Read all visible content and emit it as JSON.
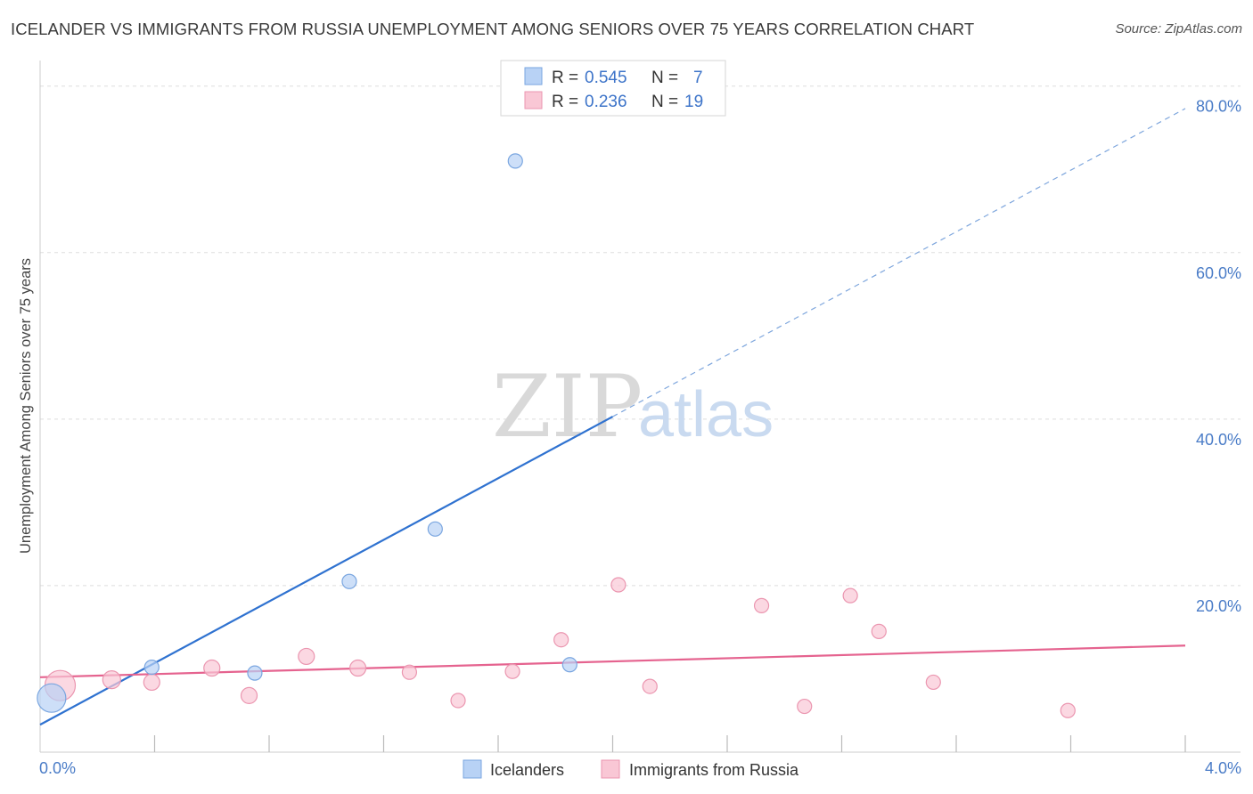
{
  "header": {
    "title": "ICELANDER VS IMMIGRANTS FROM RUSSIA UNEMPLOYMENT AMONG SENIORS OVER 75 YEARS CORRELATION CHART",
    "source": "Source: ZipAtlas.com"
  },
  "watermark": {
    "zip": "ZIP",
    "atlas": "atlas"
  },
  "colors": {
    "blue_fill": "#b8d2f5",
    "blue_stroke": "#7aa6e0",
    "blue_line": "#2f72d0",
    "pink_fill": "#f9c7d5",
    "pink_stroke": "#eb96b0",
    "pink_line": "#e5638f",
    "grid": "#dddddd",
    "tick_label": "#4a7cc7"
  },
  "legend": {
    "rows": [
      {
        "r_label": "R =",
        "r_value": "0.545",
        "n_label": "N =",
        "n_value": "7"
      },
      {
        "r_label": "R =",
        "r_value": "0.236",
        "n_label": "N =",
        "n_value": "19"
      }
    ]
  },
  "chart_data": {
    "type": "scatter",
    "title": "ICELANDER VS IMMIGRANTS FROM RUSSIA UNEMPLOYMENT AMONG SENIORS OVER 75 YEARS CORRELATION CHART",
    "xlabel": "",
    "ylabel": "Unemployment Among Seniors over 75 years",
    "xlim": [
      0,
      4.0
    ],
    "ylim": [
      0,
      82
    ],
    "x_tick_labels": [
      "0.0%",
      "4.0%"
    ],
    "y_ticks": [
      20,
      40,
      60,
      80
    ],
    "y_tick_labels": [
      "20.0%",
      "40.0%",
      "60.0%",
      "80.0%"
    ],
    "legend_placement": "top-center",
    "series": [
      {
        "name": "Icelanders",
        "color": "#b8d2f5",
        "r": 0.545,
        "n": 7,
        "points": [
          {
            "x": 0.04,
            "y": 6.5,
            "size": 16
          },
          {
            "x": 0.39,
            "y": 10.2,
            "size": 8
          },
          {
            "x": 0.75,
            "y": 9.5,
            "size": 8
          },
          {
            "x": 1.08,
            "y": 20.5,
            "size": 8
          },
          {
            "x": 1.38,
            "y": 26.8,
            "size": 8
          },
          {
            "x": 1.66,
            "y": 71.0,
            "size": 8
          },
          {
            "x": 1.85,
            "y": 10.5,
            "size": 8
          }
        ],
        "trend": {
          "x0": 0.0,
          "y0": 3.3,
          "x1": 2.0,
          "y1": 40.3,
          "dashed_to_x": 4.0,
          "dashed_to_y": 77.3
        }
      },
      {
        "name": "Immigrants from Russia",
        "color": "#f9c7d5",
        "r": 0.236,
        "n": 19,
        "points": [
          {
            "x": 0.07,
            "y": 8.0,
            "size": 17
          },
          {
            "x": 0.25,
            "y": 8.7,
            "size": 10
          },
          {
            "x": 0.39,
            "y": 8.4,
            "size": 9
          },
          {
            "x": 0.6,
            "y": 10.1,
            "size": 9
          },
          {
            "x": 0.73,
            "y": 6.8,
            "size": 9
          },
          {
            "x": 0.93,
            "y": 11.5,
            "size": 9
          },
          {
            "x": 1.11,
            "y": 10.1,
            "size": 9
          },
          {
            "x": 1.29,
            "y": 9.6,
            "size": 8
          },
          {
            "x": 1.46,
            "y": 6.2,
            "size": 8
          },
          {
            "x": 1.65,
            "y": 9.7,
            "size": 8
          },
          {
            "x": 1.82,
            "y": 13.5,
            "size": 8
          },
          {
            "x": 2.02,
            "y": 20.1,
            "size": 8
          },
          {
            "x": 2.13,
            "y": 7.9,
            "size": 8
          },
          {
            "x": 2.52,
            "y": 17.6,
            "size": 8
          },
          {
            "x": 2.67,
            "y": 5.5,
            "size": 8
          },
          {
            "x": 2.83,
            "y": 18.8,
            "size": 8
          },
          {
            "x": 2.93,
            "y": 14.5,
            "size": 8
          },
          {
            "x": 3.12,
            "y": 8.4,
            "size": 8
          },
          {
            "x": 3.59,
            "y": 5.0,
            "size": 8
          }
        ],
        "trend": {
          "x0": 0.0,
          "y0": 9.0,
          "x1": 4.0,
          "y1": 12.8
        }
      }
    ],
    "bottom_legend": [
      "Icelanders",
      "Immigrants from Russia"
    ]
  }
}
